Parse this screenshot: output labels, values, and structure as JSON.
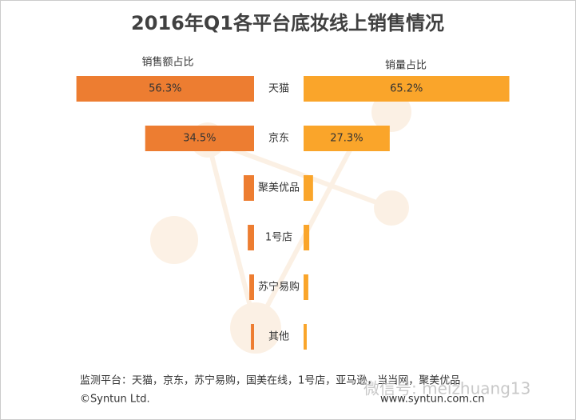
{
  "chart_data": {
    "type": "butterfly",
    "title": "2016年Q1各平台底妆线上销售情况",
    "categories": [
      "天猫",
      "京东",
      "聚美优品",
      "1号店",
      "苏宁易购",
      "其他"
    ],
    "series": [
      {
        "name": "销售额占比",
        "color": "#ed7d31",
        "values": [
          56.3,
          34.5,
          3.3,
          2.0,
          1.5,
          1.0
        ],
        "value_labels": [
          "56.3%",
          "34.5%",
          null,
          null,
          null,
          null
        ]
      },
      {
        "name": "销量占比",
        "color": "#faa52a",
        "values": [
          65.2,
          27.3,
          3.0,
          1.8,
          1.5,
          1.0
        ],
        "value_labels": [
          "65.2%",
          "27.3%",
          null,
          null,
          null,
          null
        ]
      }
    ],
    "footnote": "监测平台：天猫，京东，苏宁易购，国美在线，1号店，亚马逊，当当网，聚美优品",
    "copyright": "©Syntun Ltd.",
    "website": "www.syntun.com.cn",
    "watermark": "微信号: meizhuang13"
  }
}
